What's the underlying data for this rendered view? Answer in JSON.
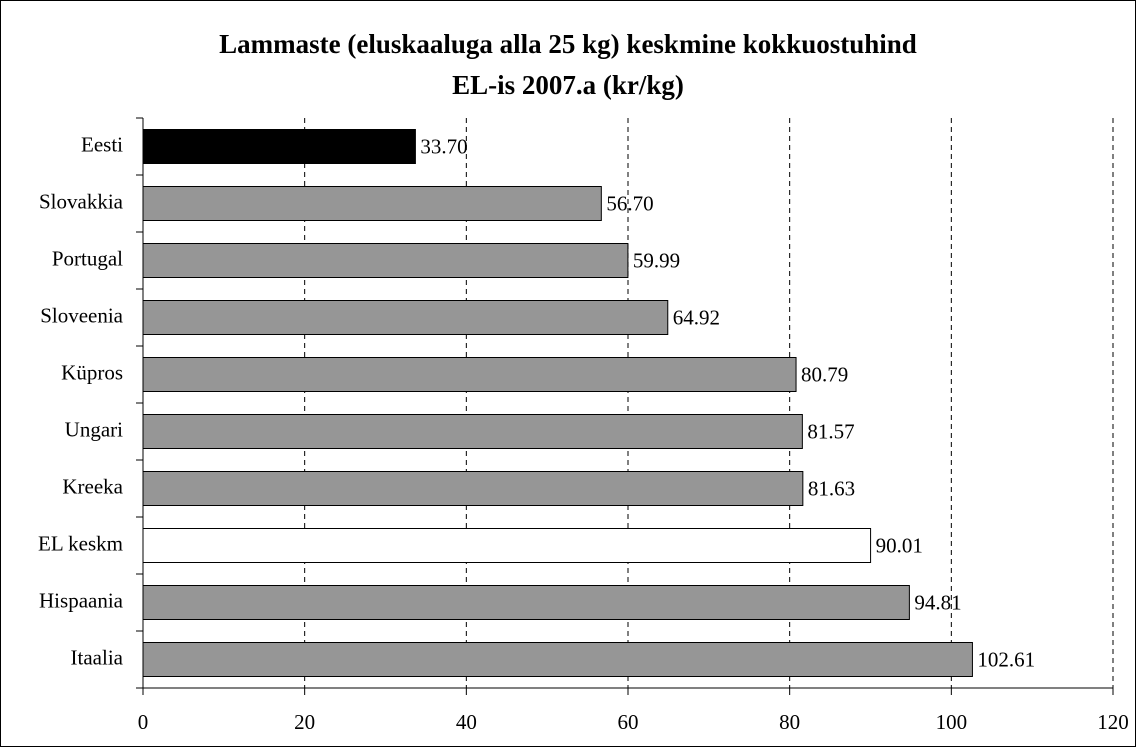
{
  "chart_data": {
    "type": "bar",
    "orientation": "horizontal",
    "title": [
      "Lammaste (eluskaaluga alla 25 kg) keskmine kokkuostuhind",
      "EL-is 2007.a (kr/kg)"
    ],
    "categories": [
      "Eesti",
      "Slovakkia",
      "Portugal",
      "Sloveenia",
      "Küpros",
      "Ungari",
      "Kreeka",
      "EL keskm",
      "Hispaania",
      "Itaalia"
    ],
    "values": [
      33.7,
      56.7,
      59.99,
      64.92,
      80.79,
      81.57,
      81.63,
      90.01,
      94.81,
      102.61
    ],
    "value_labels": [
      "33.70",
      "56.70",
      "59.99",
      "64.92",
      "80.79",
      "81.57",
      "81.63",
      "90.01",
      "94.81",
      "102.61"
    ],
    "colors": [
      "#000000",
      "#969696",
      "#969696",
      "#969696",
      "#969696",
      "#969696",
      "#969696",
      "#ffffff",
      "#969696",
      "#969696"
    ],
    "xlim": [
      0,
      120
    ],
    "xticks": [
      0,
      20,
      40,
      60,
      80,
      100,
      120
    ],
    "grid": true
  }
}
